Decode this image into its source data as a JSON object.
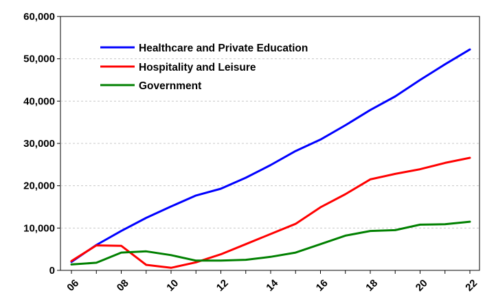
{
  "chart_data": {
    "type": "line",
    "x": [
      "06",
      "07",
      "08",
      "09",
      "10",
      "11",
      "12",
      "13",
      "14",
      "15",
      "16",
      "17",
      "18",
      "19",
      "20",
      "21",
      "22"
    ],
    "x_tick_labels": [
      "06",
      "08",
      "10",
      "12",
      "14",
      "16",
      "18",
      "20",
      "22"
    ],
    "y_tick_labels": [
      "0",
      "10,000",
      "20,000",
      "30,000",
      "40,000",
      "50,000",
      "60,000"
    ],
    "ylim": [
      0,
      60000
    ],
    "grid": true,
    "legend_position": "top-left",
    "series": [
      {
        "name": "Healthcare and Private Education",
        "color": "#0000ff",
        "values": [
          2000,
          6000,
          9300,
          12400,
          15100,
          17700,
          19300,
          21900,
          24900,
          28200,
          30900,
          34300,
          37900,
          41100,
          45000,
          48700,
          52200
        ]
      },
      {
        "name": "Hospitality and Leisure",
        "color": "#ff0000",
        "values": [
          2200,
          5900,
          5800,
          1300,
          600,
          1900,
          3800,
          6200,
          8600,
          11000,
          14900,
          18000,
          21500,
          22800,
          23900,
          25400,
          26600
        ]
      },
      {
        "name": "Government",
        "color": "#008000",
        "values": [
          1400,
          1800,
          4200,
          4500,
          3600,
          2300,
          2300,
          2500,
          3200,
          4200,
          6200,
          8200,
          9300,
          9500,
          10800,
          10900,
          11500
        ]
      }
    ]
  }
}
